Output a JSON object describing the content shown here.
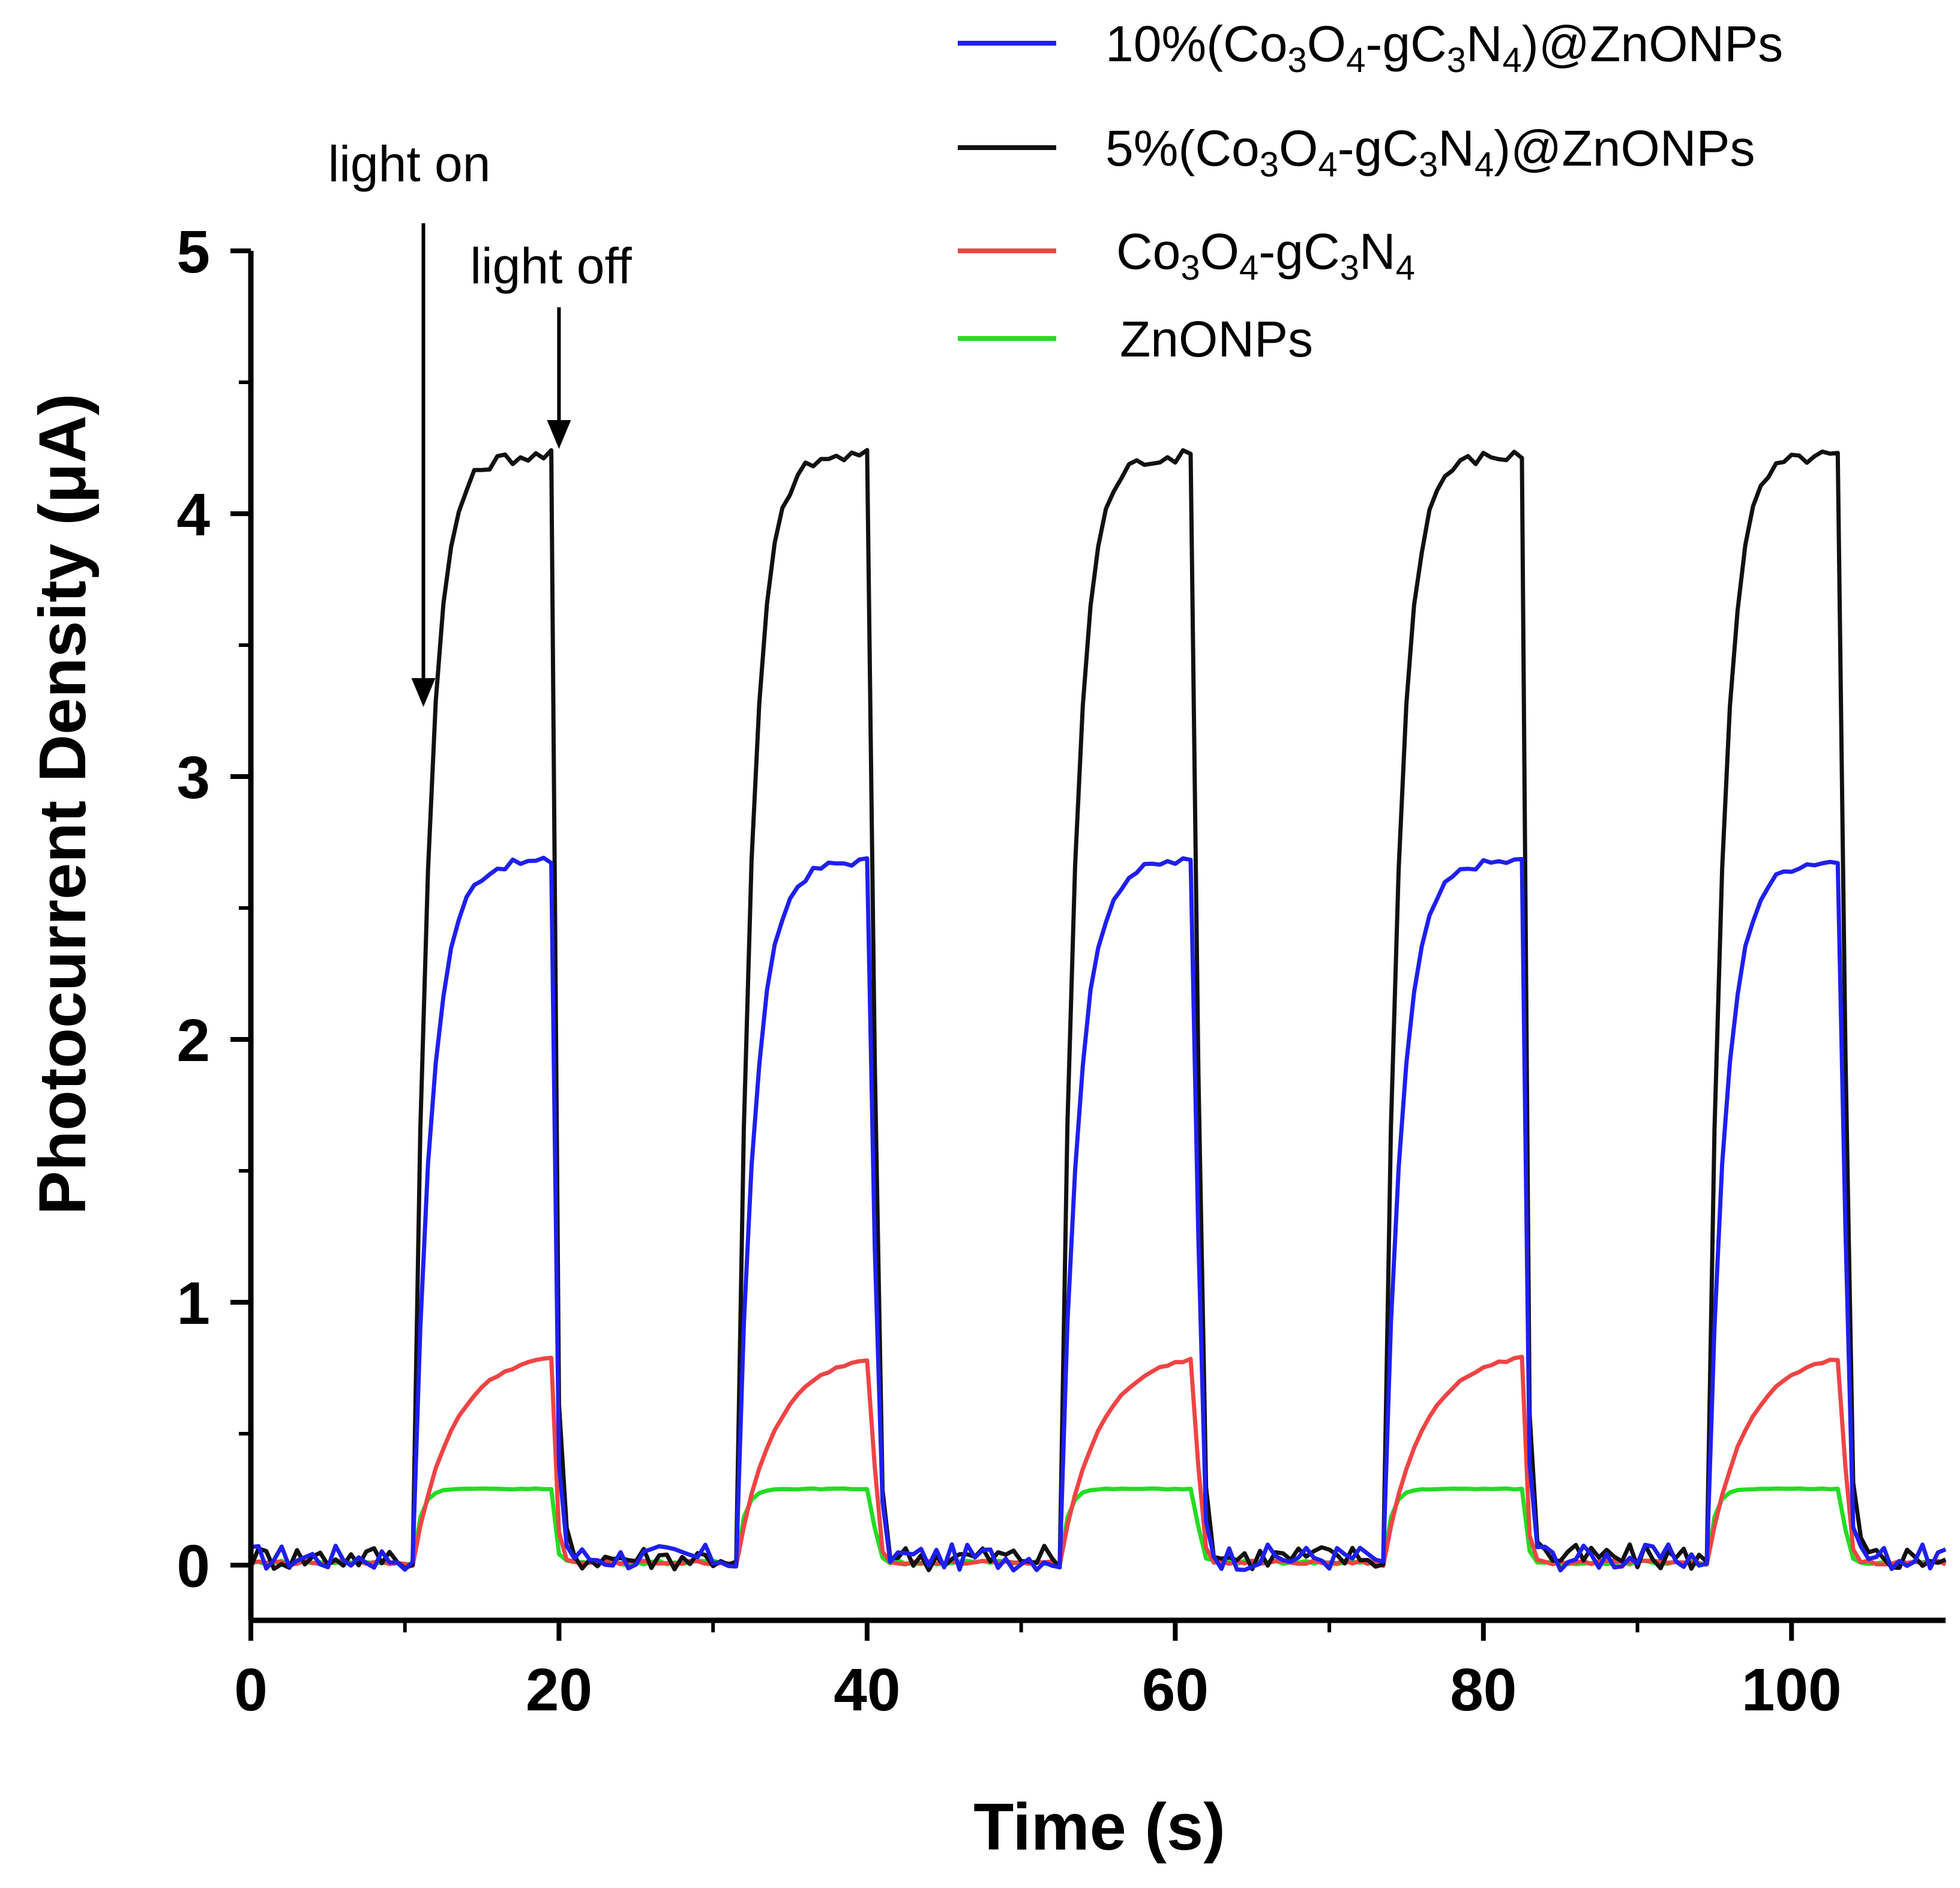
{
  "chart_data": {
    "type": "line",
    "xlabel": "Time (s)",
    "ylabel": "Photocurrent Density (μA)",
    "xlim": [
      0,
      110
    ],
    "ylim": [
      -0.2,
      5
    ],
    "x_ticks": [
      0,
      20,
      40,
      60,
      80,
      100
    ],
    "x_tick_labels": [
      "0",
      "20",
      "40",
      "60",
      "80",
      "100"
    ],
    "y_ticks": [
      0,
      1,
      2,
      3,
      4,
      5
    ],
    "y_tick_labels": [
      "0",
      "1",
      "2",
      "3",
      "4",
      "5"
    ],
    "legend_position": "top-right",
    "light_on_periods": [
      [
        10.5,
        19.5
      ],
      [
        31.5,
        40.3
      ],
      [
        52.5,
        61.3
      ],
      [
        73.5,
        82.5
      ],
      [
        94.5,
        103.3
      ]
    ],
    "series": [
      {
        "name": "10%(Co3O4-gC3N4)@ZnONPs",
        "legend_parts": [
          "10%(Co",
          "3",
          "O",
          "4",
          "-gC",
          "3",
          "N",
          "4",
          ")@ZnONPs"
        ],
        "color": "#1f1fef",
        "plateau": 2.68,
        "rise_tau": 1.2,
        "baseline": 0.03
      },
      {
        "name": "5%(Co3O4-gC3N4)@ZnONPs",
        "legend_parts": [
          "5%(Co",
          "3",
          "O",
          "4",
          "-gC",
          "3",
          "N",
          "4",
          ")@ZnONPs"
        ],
        "color": "#111111",
        "plateau": 4.22,
        "rise_tau": 1.0,
        "baseline": 0.03
      },
      {
        "name": "Co3O4-gC3N4",
        "legend_parts": [
          "Co",
          "3",
          "O",
          "4",
          "-gC",
          "3",
          "N",
          "4"
        ],
        "color": "#ef4444",
        "plateau": 0.81,
        "rise_tau": 2.5,
        "baseline": 0.01
      },
      {
        "name": "ZnONPs",
        "legend_parts": [
          "ZnONPs"
        ],
        "color": "#22dd22",
        "plateau": 0.29,
        "rise_tau": 0.5,
        "baseline": 0.01
      }
    ],
    "annotations": [
      {
        "text": "light on",
        "x": 11.2
      },
      {
        "text": "light off",
        "x": 20.0
      }
    ]
  }
}
